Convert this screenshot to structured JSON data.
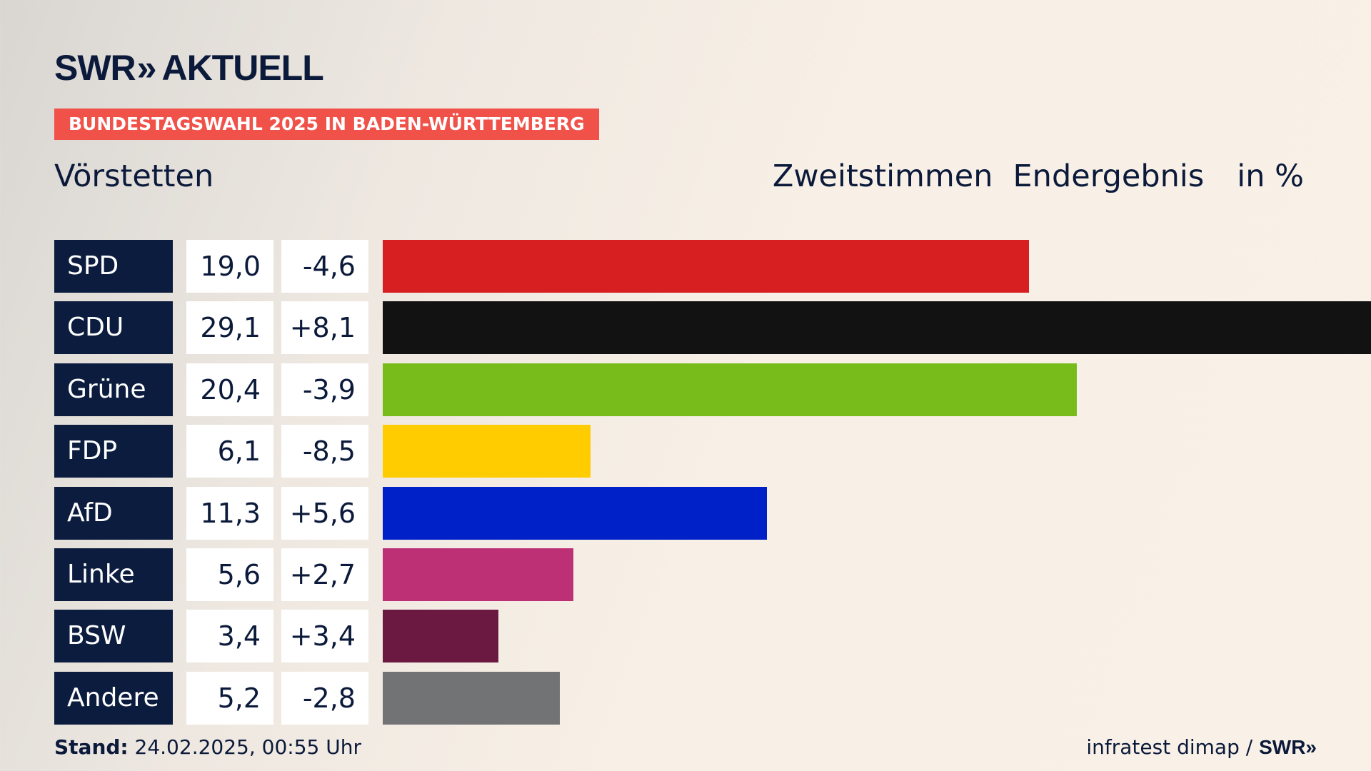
{
  "brand": {
    "name": "SWR",
    "chevrons": "»",
    "product": "AKTUELL"
  },
  "banner": "BUNDESTAGSWAHL 2025 IN BADEN-WÜRTTEMBERG",
  "location": "Vörstetten",
  "header": {
    "vote_type": "Zweitstimmen",
    "status": "Endergebnis",
    "unit": "in %"
  },
  "chart_data": {
    "type": "bar",
    "orientation": "horizontal",
    "categories": [
      "SPD",
      "CDU",
      "Grüne",
      "FDP",
      "AfD",
      "Linke",
      "BSW",
      "Andere"
    ],
    "values": [
      19.0,
      29.1,
      20.4,
      6.1,
      11.3,
      5.6,
      3.4,
      5.2
    ],
    "value_labels": [
      "19,0",
      "29,1",
      "20,4",
      "6,1",
      "11,3",
      "5,6",
      "3,4",
      "5,2"
    ],
    "diff_labels": [
      "-4,6",
      "+8,1",
      "-3,9",
      "-8,5",
      "+5,6",
      "+2,7",
      "+3,4",
      "-2,8"
    ],
    "diffs": [
      -4.6,
      8.1,
      -3.9,
      -8.5,
      5.6,
      2.7,
      3.4,
      -2.8
    ],
    "colors": [
      "#d71f21",
      "#121212",
      "#78bc1b",
      "#ffcc00",
      "#0021c8",
      "#bd3075",
      "#6b1941",
      "#717375"
    ],
    "xlim": [
      0,
      29.1
    ]
  },
  "footer": {
    "stand_label": "Stand:",
    "stand_value": "24.02.2025, 00:55 Uhr",
    "source": "infratest dimap /",
    "source_logo": "SWR»"
  }
}
